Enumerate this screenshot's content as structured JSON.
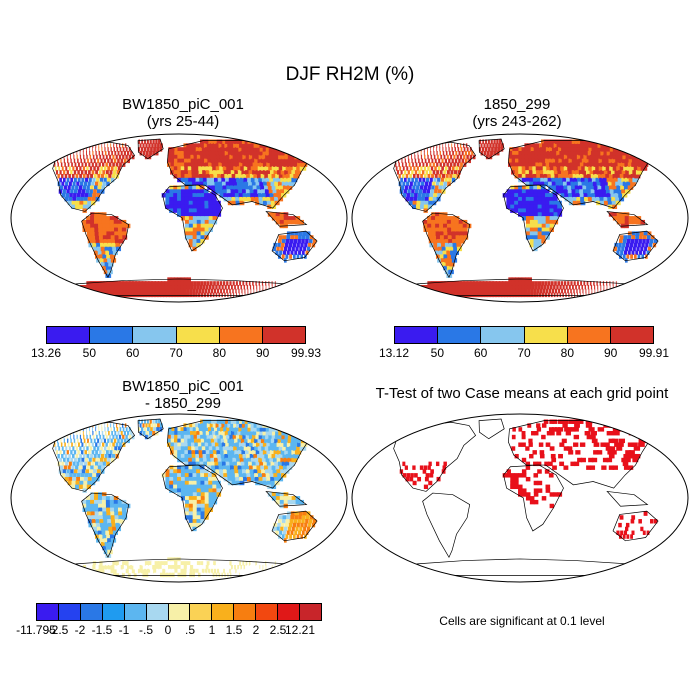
{
  "title": "DJF RH2M (%)",
  "panels": [
    {
      "title_line1": "BW1850_piC_001",
      "title_line2": "(yrs 25-44)"
    },
    {
      "title_line1": "1850_299",
      "title_line2": "(yrs 243-262)"
    },
    {
      "title_line1": "BW1850_piC_001",
      "title_line2": "- 1850_299"
    },
    {
      "title_line1": "T-Test of two Case means at each grid point"
    }
  ],
  "colorbars": [
    {
      "colors": [
        "#3a1bf0",
        "#2a78e6",
        "#86c6ee",
        "#f7df4b",
        "#f7741f",
        "#d1322a"
      ],
      "labels": [
        "13.26",
        "50",
        "60",
        "70",
        "80",
        "90",
        "99.93"
      ]
    },
    {
      "colors": [
        "#3a1bf0",
        "#2a78e6",
        "#86c6ee",
        "#f7df4b",
        "#f7741f",
        "#d1322a"
      ],
      "labels": [
        "13.12",
        "50",
        "60",
        "70",
        "80",
        "90",
        "99.91"
      ]
    },
    {
      "colors": [
        "#3a1bf0",
        "#2542f0",
        "#2a78e6",
        "#1f9bf0",
        "#5cb6f0",
        "#a8d8f0",
        "#f7f0a8",
        "#fad255",
        "#f9b01c",
        "#f77e10",
        "#f24810",
        "#e01818",
        "#c8252a"
      ],
      "labels": [
        "-11.795",
        "-2.5",
        "-2",
        "-1.5",
        "-1",
        "-.5",
        "0",
        ".5",
        "1",
        "1.5",
        "2",
        "2.5",
        "12.21"
      ]
    }
  ],
  "significance_note": "Cells are significant at 0.1 level",
  "palette": {
    "humid": "#d1322a",
    "orange": "#f7741f",
    "yellow": "#f7df4b",
    "lightblue": "#86c6ee",
    "blue": "#2a78e6",
    "dry": "#3a1bf0",
    "diff_pos": "#f9b01c",
    "diff_neg": "#5cb6f0",
    "diff_zero": "#f7f0a8",
    "signif": "#e8101a"
  }
}
